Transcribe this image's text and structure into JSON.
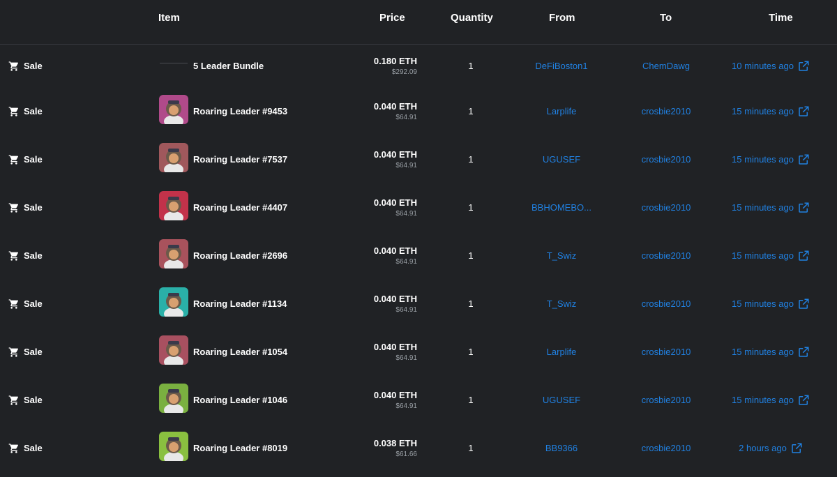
{
  "header": {
    "item": "Item",
    "price": "Price",
    "quantity": "Quantity",
    "from": "From",
    "to": "To",
    "time": "Time"
  },
  "colors": {
    "background": "#202225",
    "link": "#2081e2",
    "muted": "#9aa0a6"
  },
  "rows": [
    {
      "event": "Sale",
      "name": "5 Leader Bundle",
      "eth": "0.180 ETH",
      "usd": "$292.09",
      "qty": "1",
      "from": "DeFiBoston1",
      "to": "ChemDawg",
      "time": "10 minutes ago",
      "thumb_color": ""
    },
    {
      "event": "Sale",
      "name": "Roaring Leader #9453",
      "eth": "0.040 ETH",
      "usd": "$64.91",
      "qty": "1",
      "from": "Larplife",
      "to": "crosbie2010",
      "time": "15 minutes ago",
      "thumb_color": "#b04a8a"
    },
    {
      "event": "Sale",
      "name": "Roaring Leader #7537",
      "eth": "0.040 ETH",
      "usd": "$64.91",
      "qty": "1",
      "from": "UGUSEF",
      "to": "crosbie2010",
      "time": "15 minutes ago",
      "thumb_color": "#a0585c"
    },
    {
      "event": "Sale",
      "name": "Roaring Leader #4407",
      "eth": "0.040 ETH",
      "usd": "$64.91",
      "qty": "1",
      "from": "BBHOMEBO...",
      "to": "crosbie2010",
      "time": "15 minutes ago",
      "thumb_color": "#c2324a"
    },
    {
      "event": "Sale",
      "name": "Roaring Leader #2696",
      "eth": "0.040 ETH",
      "usd": "$64.91",
      "qty": "1",
      "from": "T_Swiz",
      "to": "crosbie2010",
      "time": "15 minutes ago",
      "thumb_color": "#a8525c"
    },
    {
      "event": "Sale",
      "name": "Roaring Leader #1134",
      "eth": "0.040 ETH",
      "usd": "$64.91",
      "qty": "1",
      "from": "T_Swiz",
      "to": "crosbie2010",
      "time": "15 minutes ago",
      "thumb_color": "#2ab0a8"
    },
    {
      "event": "Sale",
      "name": "Roaring Leader #1054",
      "eth": "0.040 ETH",
      "usd": "$64.91",
      "qty": "1",
      "from": "Larplife",
      "to": "crosbie2010",
      "time": "15 minutes ago",
      "thumb_color": "#a85060"
    },
    {
      "event": "Sale",
      "name": "Roaring Leader #1046",
      "eth": "0.040 ETH",
      "usd": "$64.91",
      "qty": "1",
      "from": "UGUSEF",
      "to": "crosbie2010",
      "time": "15 minutes ago",
      "thumb_color": "#7ab040"
    },
    {
      "event": "Sale",
      "name": "Roaring Leader #8019",
      "eth": "0.038 ETH",
      "usd": "$61.66",
      "qty": "1",
      "from": "BB9366",
      "to": "crosbie2010",
      "time": "2 hours ago",
      "thumb_color": "#8ac040"
    }
  ]
}
